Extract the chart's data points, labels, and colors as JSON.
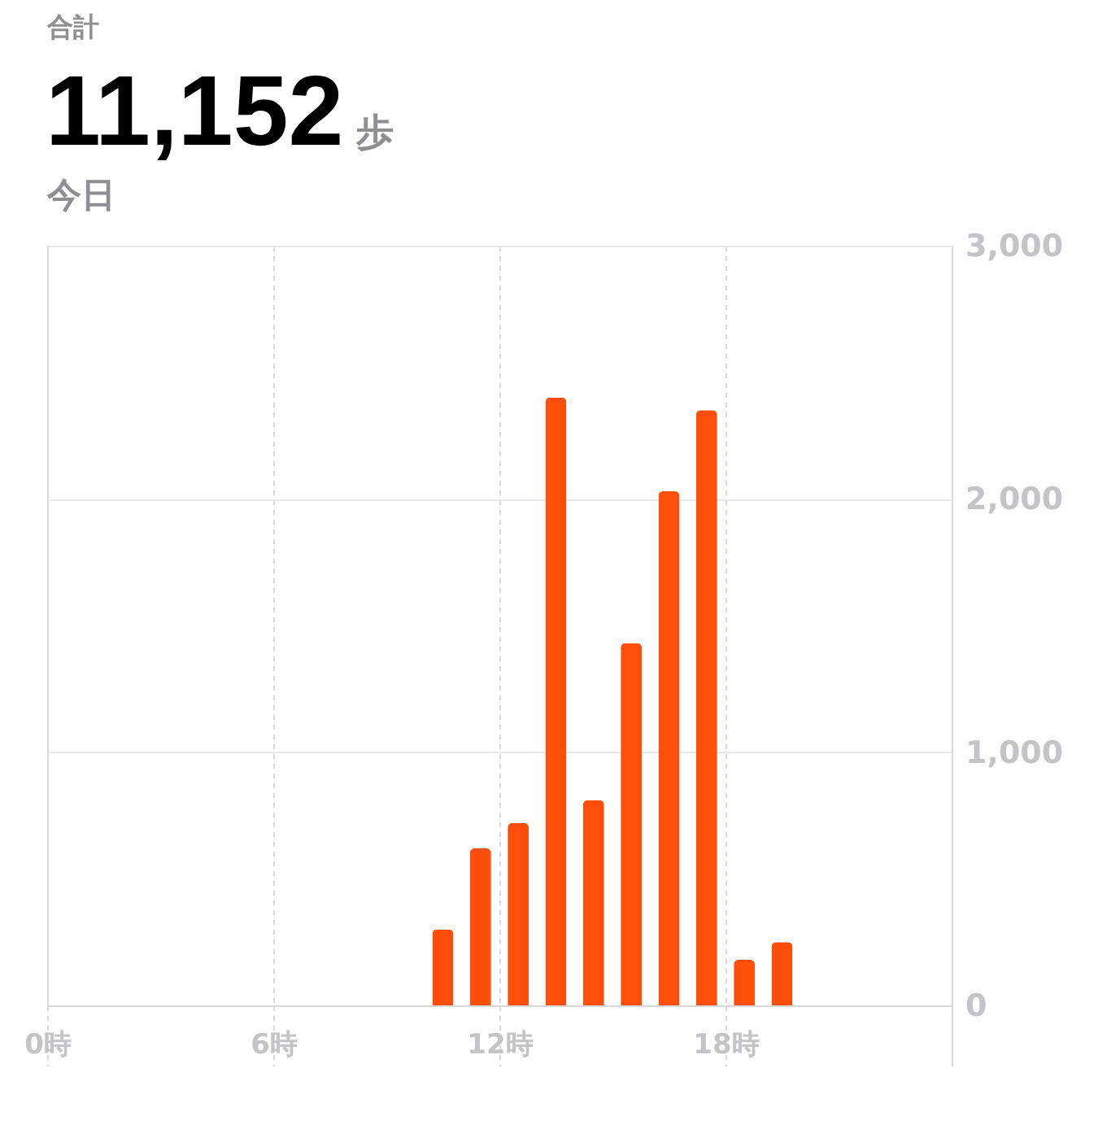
{
  "chart_data": {
    "type": "bar",
    "title": "合計",
    "subtitle": "今日",
    "annotations": [
      "11,152",
      "歩"
    ],
    "x": [
      10.5,
      11.5,
      12.5,
      13.5,
      14.5,
      15.5,
      16.5,
      17.5,
      18.5,
      19.5
    ],
    "values": [
      300,
      620,
      720,
      2400,
      810,
      1430,
      2030,
      2350,
      180,
      250
    ],
    "color": "#ff4e0a",
    "xlim": [
      0,
      24
    ],
    "xticks": [
      {
        "value": 0,
        "label": "0時"
      },
      {
        "value": 6,
        "label": "6時"
      },
      {
        "value": 12,
        "label": "12時"
      },
      {
        "value": 18,
        "label": "18時"
      },
      {
        "value": 24,
        "label": null
      }
    ],
    "ylim": [
      0,
      3000
    ],
    "yticks": [
      0,
      {
        "value": 1000,
        "label": "1,000"
      },
      {
        "value": 2000,
        "label": "2,000"
      },
      {
        "value": 3000,
        "label": "3,000"
      }
    ],
    "grid": true
  }
}
